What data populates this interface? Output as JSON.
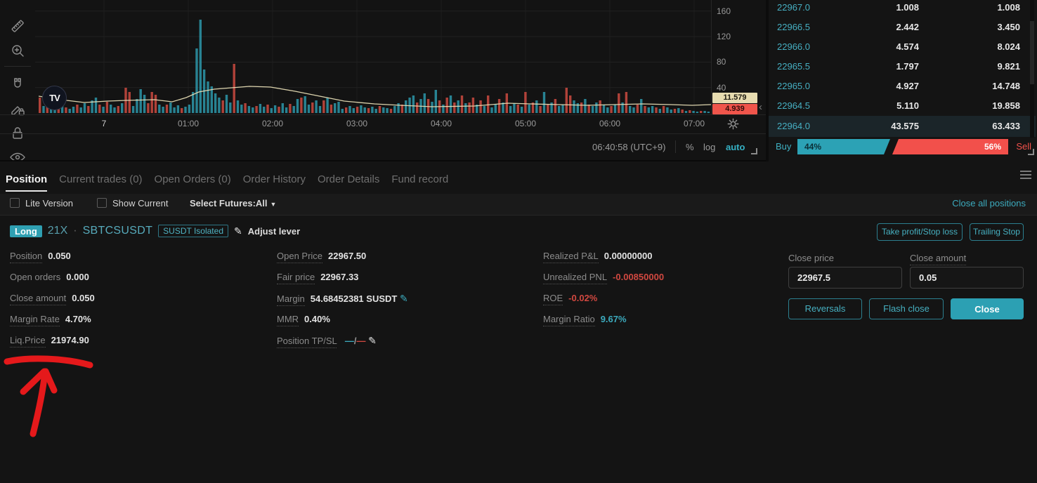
{
  "colors": {
    "accent_teal": "#2FA6B9",
    "sell_red": "#F2504B",
    "bar_up": "#2B93A5",
    "bar_down": "#C7493F",
    "ma_line": "#E7DDB5",
    "tag_ma_bg": "#E7DCB0",
    "tag_last_bg": "#F0554B",
    "annotation_red": "#E5191B"
  },
  "chart": {
    "y_ticks": [
      "160",
      "120",
      "80",
      "40"
    ],
    "x_ticks": [
      "7",
      "01:00",
      "02:00",
      "03:00",
      "04:00",
      "05:00",
      "06:00",
      "07:00"
    ],
    "ma_value": "11.579",
    "last_value": "4.939",
    "clock": "06:40:58 (UTC+9)",
    "scale_percent": "%",
    "scale_log": "log",
    "scale_auto": "auto",
    "logo": "TV",
    "bars": [
      -22,
      10,
      -14,
      7,
      12,
      -9,
      16,
      -8,
      6,
      9,
      -12,
      8,
      14,
      -10,
      18,
      22,
      -12,
      9,
      -16,
      12,
      8,
      -10,
      14,
      -36,
      -30,
      10,
      20,
      34,
      26,
      -14,
      -30,
      -26,
      12,
      9,
      -12,
      15,
      8,
      11,
      -7,
      9,
      12,
      30,
      92,
      133,
      62,
      45,
      38,
      28,
      22,
      -18,
      26,
      15,
      -70,
      18,
      12,
      -14,
      10,
      8,
      -10,
      13,
      9,
      -12,
      7,
      11,
      -9,
      14,
      8,
      -13,
      10,
      20,
      -22,
      24,
      12,
      -15,
      18,
      10,
      -18,
      22,
      -12,
      14,
      16,
      6,
      -8,
      10,
      7,
      -9,
      11,
      8,
      -7,
      9,
      6,
      -10,
      8,
      7,
      -6,
      10,
      14,
      -12,
      18,
      22,
      25,
      -15,
      20,
      28,
      -20,
      16,
      33,
      -18,
      12,
      -22,
      25,
      -15,
      18,
      -25,
      14,
      -15,
      -22,
      12,
      -18,
      10,
      -25,
      8,
      12,
      -20,
      15,
      -28,
      10,
      14,
      -12,
      9,
      -30,
      12,
      -15,
      18,
      -10,
      30,
      -12,
      15,
      -20,
      10,
      12,
      -36,
      -25,
      18,
      14,
      -15,
      20,
      -12,
      10,
      15,
      -18,
      12,
      8,
      -10,
      12,
      -28,
      15,
      -30,
      10,
      8,
      -12,
      20,
      -10,
      8,
      10,
      -8,
      6,
      -10,
      8,
      5,
      -6,
      7,
      -5,
      3,
      -4,
      3,
      2,
      -3,
      3,
      2
    ],
    "ma_line": [
      [
        0,
        24
      ],
      [
        40,
        18
      ],
      [
        65,
        15
      ],
      [
        98,
        17
      ],
      [
        125,
        18
      ],
      [
        165,
        19
      ],
      [
        190,
        16
      ],
      [
        210,
        22
      ],
      [
        228,
        30
      ],
      [
        250,
        34
      ],
      [
        300,
        38
      ],
      [
        330,
        37
      ],
      [
        365,
        31
      ],
      [
        400,
        24
      ],
      [
        435,
        17
      ],
      [
        478,
        13
      ],
      [
        515,
        11
      ],
      [
        560,
        9
      ],
      [
        620,
        10
      ],
      [
        668,
        14
      ],
      [
        700,
        13
      ],
      [
        740,
        12
      ],
      [
        780,
        11
      ],
      [
        820,
        12
      ],
      [
        860,
        13
      ],
      [
        900,
        12
      ],
      [
        930,
        11
      ],
      [
        957,
        12
      ]
    ]
  },
  "orderbook": {
    "rows": [
      {
        "price": "22967.0",
        "amount": "1.008",
        "total": "1.008"
      },
      {
        "price": "22966.5",
        "amount": "2.442",
        "total": "3.450"
      },
      {
        "price": "22966.0",
        "amount": "4.574",
        "total": "8.024"
      },
      {
        "price": "22965.5",
        "amount": "1.797",
        "total": "9.821"
      },
      {
        "price": "22965.0",
        "amount": "4.927",
        "total": "14.748"
      },
      {
        "price": "22964.5",
        "amount": "5.110",
        "total": "19.858"
      },
      {
        "price": "22964.0",
        "amount": "43.575",
        "total": "63.433"
      }
    ],
    "buy_label": "Buy",
    "buy_pct": "44%",
    "sell_pct": "56%",
    "sell_label": "Sell"
  },
  "tabs": {
    "position": "Position",
    "current_trades": "Current trades (0)",
    "open_orders": "Open Orders (0)",
    "order_history": "Order History",
    "order_details": "Order Details",
    "fund_record": "Fund record"
  },
  "filters": {
    "lite_version": "Lite Version",
    "show_current": "Show Current",
    "select_futures": "Select Futures:All",
    "close_all": "Close all positions"
  },
  "position": {
    "side": "Long",
    "leverage": "21X",
    "dot": "·",
    "symbol": "SBTCSUSDT",
    "margin_mode": "SUSDT Isolated",
    "adjust_lever": "Adjust lever",
    "left": {
      "position_label": "Position",
      "position_value": "0.050",
      "open_orders_label": "Open orders",
      "open_orders_value": "0.000",
      "close_amount_label": "Close amount",
      "close_amount_value": "0.050",
      "margin_rate_label": "Margin Rate",
      "margin_rate_value": "4.70%",
      "liq_price_label": "Liq.Price",
      "liq_price_value": "21974.90"
    },
    "mid": {
      "open_price_label": "Open Price",
      "open_price_value": "22967.50",
      "fair_price_label": "Fair price",
      "fair_price_value": "22967.33",
      "margin_label": "Margin",
      "margin_value": "54.68452381 SUSDT",
      "mmr_label": "MMR",
      "mmr_value": "0.40%",
      "tpsl_label": "Position TP/SL",
      "tp_value": "—",
      "tpsl_slash": "/",
      "sl_value": "—"
    },
    "right": {
      "realized_label": "Realized P&L",
      "realized_value": "0.00000000",
      "unrealized_label": "Unrealized PNL",
      "unrealized_value": "-0.00850000",
      "roe_label": "ROE",
      "roe_value": "-0.02%",
      "margin_ratio_label": "Margin Ratio",
      "margin_ratio_value": "9.67%"
    },
    "actions": {
      "tp_sl": "Take profit/Stop loss",
      "trailing_stop": "Trailing Stop",
      "close_price_label": "Close price",
      "close_price_value": "22967.5",
      "close_amount_label": "Close amount",
      "close_amount_value": "0.05",
      "reversals": "Reversals",
      "flash_close": "Flash close",
      "close": "Close"
    }
  }
}
